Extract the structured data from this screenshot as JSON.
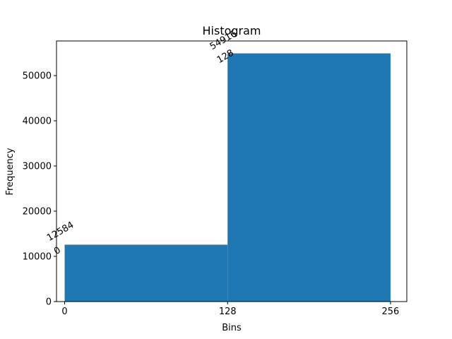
{
  "chart_data": {
    "type": "bar",
    "title": "Histogram",
    "xlabel": "Bins",
    "ylabel": "Frequency",
    "bins": [
      {
        "start": 0,
        "end": 128,
        "value": 12584,
        "start_label": "0",
        "value_label": "12584"
      },
      {
        "start": 128,
        "end": 256,
        "value": 54916,
        "start_label": "128",
        "value_label": "54916"
      }
    ],
    "xlim": [
      -6.4,
      268.8
    ],
    "ylim": [
      0,
      57661.8
    ],
    "xticks": [
      0,
      128,
      256
    ],
    "xtick_labels": [
      "0",
      "128",
      "256"
    ],
    "yticks": [
      0,
      10000,
      20000,
      30000,
      40000,
      50000
    ],
    "ytick_labels": [
      "0",
      "10000",
      "20000",
      "30000",
      "40000",
      "50000"
    ],
    "bar_color": "#1f77b4",
    "grid": false,
    "legend": false
  }
}
